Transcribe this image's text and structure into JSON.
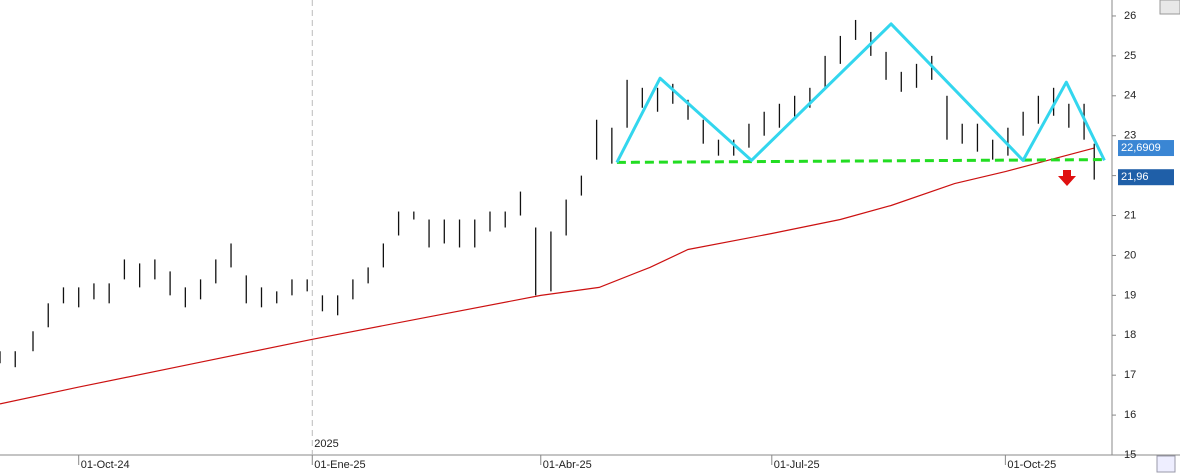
{
  "chart_data": {
    "type": "ohlc",
    "xlim": [
      -31,
      407
    ],
    "ylim": [
      15,
      26.4
    ],
    "xticks": [
      {
        "value": 0,
        "label": "01-Oct-24"
      },
      {
        "value": 92,
        "label": "01-Ene-25"
      },
      {
        "value": 182,
        "label": "01-Abr-25"
      },
      {
        "value": 273,
        "label": "01-Jul-25"
      },
      {
        "value": 365,
        "label": "01-Oct-25"
      }
    ],
    "yticks": [
      15,
      16,
      17,
      18,
      19,
      20,
      21,
      22,
      23,
      24,
      25,
      26
    ],
    "year_marker": {
      "value": 92,
      "label": "2025"
    },
    "price": {
      "color": "#111111",
      "x": [
        -31,
        -25,
        -18,
        -12,
        -6,
        0,
        6,
        12,
        18,
        24,
        30,
        36,
        42,
        48,
        54,
        60,
        66,
        72,
        78,
        84,
        90,
        96,
        102,
        108,
        114,
        120,
        126,
        132,
        138,
        144,
        150,
        156,
        162,
        168,
        174,
        180,
        186,
        192,
        198,
        204,
        210,
        216,
        222,
        228,
        234,
        240,
        246,
        252,
        258,
        264,
        270,
        276,
        282,
        288,
        294,
        300,
        306,
        312,
        318,
        324,
        330,
        336,
        342,
        348,
        354,
        360,
        366,
        372,
        378,
        384,
        390,
        396,
        400
      ],
      "low": [
        17.3,
        17.2,
        17.6,
        18.2,
        18.8,
        18.7,
        18.9,
        18.8,
        19.4,
        19.2,
        19.4,
        19.0,
        18.7,
        18.9,
        19.3,
        19.7,
        18.8,
        18.7,
        18.8,
        19.0,
        19.1,
        18.6,
        18.5,
        18.9,
        19.3,
        19.7,
        20.5,
        20.9,
        20.2,
        20.3,
        20.2,
        20.2,
        20.6,
        20.7,
        21.0,
        19.0,
        19.1,
        20.5,
        21.5,
        22.4,
        22.3,
        23.2,
        23.7,
        23.6,
        23.8,
        23.4,
        22.8,
        22.5,
        22.5,
        22.7,
        23.0,
        23.2,
        23.4,
        23.7,
        24.2,
        24.8,
        25.4,
        25.0,
        24.4,
        24.1,
        24.2,
        24.4,
        22.9,
        22.8,
        22.6,
        22.4,
        22.5,
        23.0,
        23.3,
        23.5,
        23.2,
        22.9,
        21.9
      ],
      "high": [
        17.6,
        17.6,
        18.1,
        18.8,
        19.2,
        19.2,
        19.3,
        19.3,
        19.9,
        19.8,
        19.9,
        19.6,
        19.2,
        19.4,
        19.9,
        20.3,
        19.5,
        19.2,
        19.1,
        19.4,
        19.4,
        19.0,
        19.0,
        19.4,
        19.7,
        20.3,
        21.1,
        21.1,
        20.9,
        20.9,
        20.9,
        20.9,
        21.1,
        21.1,
        21.6,
        20.7,
        20.6,
        21.4,
        22.0,
        23.4,
        23.2,
        24.4,
        24.2,
        24.2,
        24.3,
        23.9,
        23.4,
        22.9,
        22.9,
        23.3,
        23.6,
        23.8,
        24.0,
        24.2,
        25.0,
        25.5,
        25.9,
        25.6,
        25.1,
        24.6,
        24.8,
        25.0,
        24.0,
        23.3,
        23.3,
        22.9,
        23.2,
        23.6,
        24.0,
        24.2,
        23.8,
        23.8,
        22.8
      ]
    },
    "moving_average": {
      "color": "#cc1111",
      "x": [
        -31,
        0,
        46,
        92,
        137,
        182,
        205,
        225,
        240,
        273,
        300,
        320,
        345,
        365,
        400
      ],
      "values": [
        16.28,
        16.7,
        17.3,
        17.9,
        18.45,
        19.0,
        19.2,
        19.7,
        20.15,
        20.55,
        20.9,
        21.25,
        21.8,
        22.1,
        22.69
      ]
    },
    "pattern": {
      "color": "#33d6ee",
      "x": [
        212,
        229,
        265,
        320,
        372,
        389,
        404
      ],
      "values": [
        22.33,
        24.44,
        22.38,
        25.8,
        22.38,
        24.34,
        22.38
      ]
    },
    "neckline": {
      "color": "#22dd22",
      "x": [
        212,
        404
      ],
      "values": [
        22.33,
        22.4
      ]
    },
    "price_labels": [
      {
        "value": 22.6909,
        "label": "22,6909"
      },
      {
        "value": 21.96,
        "label": "21,96"
      }
    ]
  }
}
